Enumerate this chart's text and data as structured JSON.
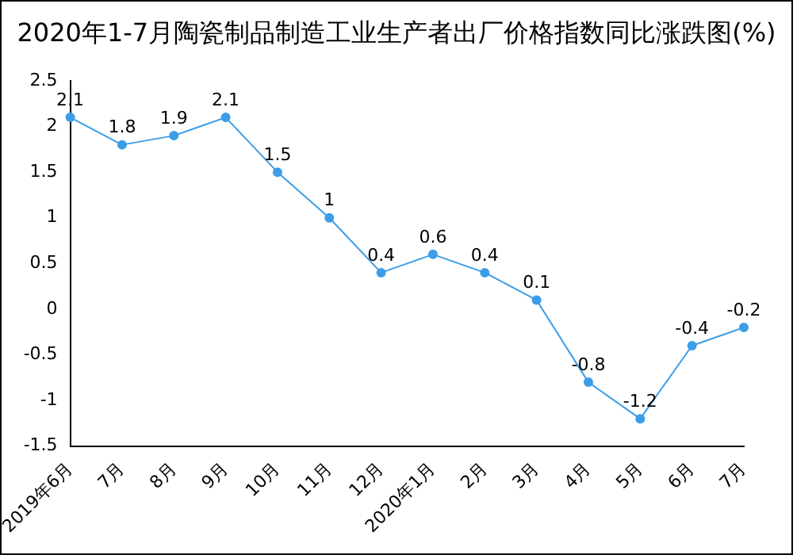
{
  "chart_data": {
    "type": "line",
    "title": "2020年1-7月陶瓷制品制造工业生产者出厂价格指数同比涨跌图(%)",
    "categories": [
      "2019年6月",
      "7月",
      "8月",
      "9月",
      "10月",
      "11月",
      "12月",
      "2020年1月",
      "2月",
      "3月",
      "4月",
      "5月",
      "6月",
      "7月"
    ],
    "series": [
      {
        "color": "#3b9de6",
        "values": [
          2.1,
          1.8,
          1.9,
          2.1,
          1.5,
          1,
          0.4,
          0.6,
          0.4,
          0.1,
          -0.8,
          -1.2,
          -0.4,
          -0.2
        ]
      }
    ],
    "ylim": [
      -1.5,
      2.5
    ],
    "yticks": [
      -1.5,
      -1,
      -0.5,
      0,
      0.5,
      1,
      1.5,
      2,
      2.5
    ],
    "grid": false,
    "legend": false,
    "marker": "circle",
    "line_style": "solid",
    "data_labels": true
  }
}
